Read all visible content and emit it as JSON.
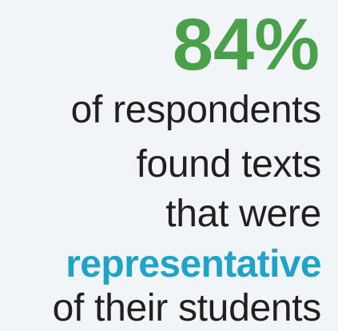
{
  "stat": {
    "value": "84%",
    "lines": [
      "of respondents",
      "found texts",
      "that were",
      "representative",
      "of their students"
    ]
  },
  "colors": {
    "background": "#f2f5f8",
    "stat_green": "#4aa04b",
    "highlight_blue": "#1fa3c9",
    "text_dark": "#231f20"
  }
}
